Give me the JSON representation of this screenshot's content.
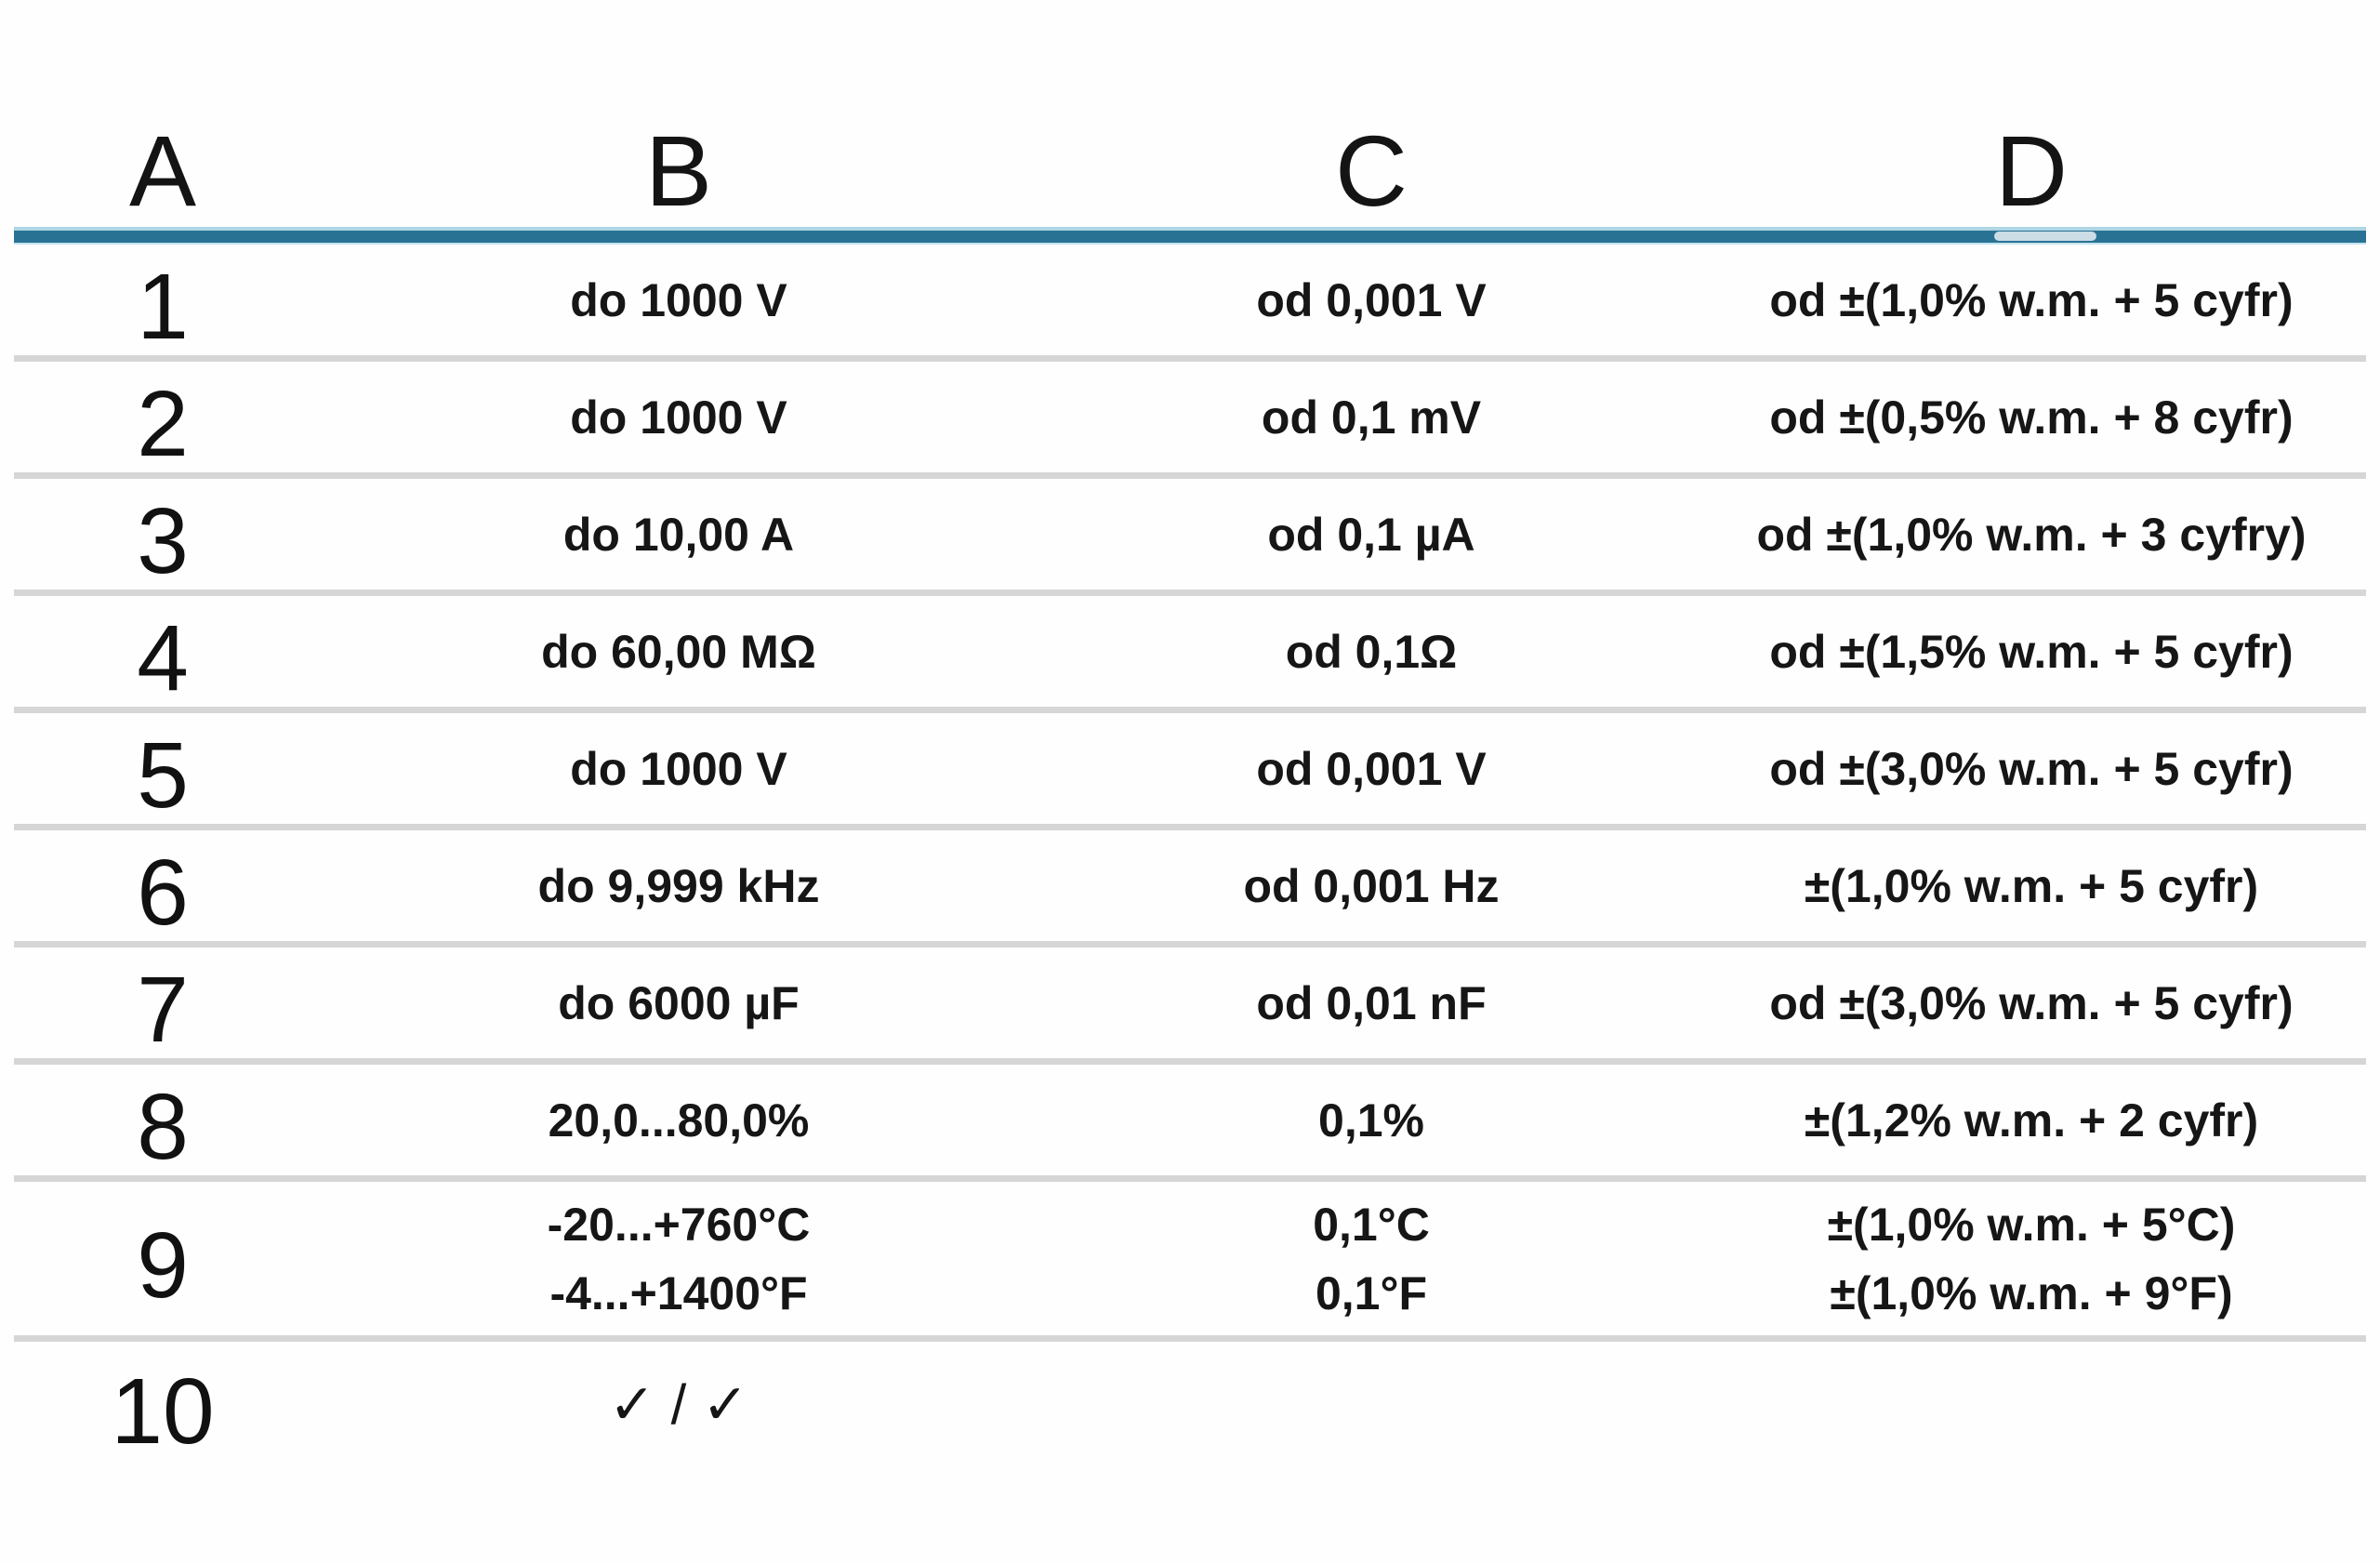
{
  "table": {
    "headers": [
      "A",
      "B",
      "C",
      "D"
    ],
    "rows": [
      {
        "a": "1",
        "b": "do 1000 V",
        "c": "od 0,001 V",
        "d": "od ±(1,0% w.m. + 5 cyfr)"
      },
      {
        "a": "2",
        "b": "do 1000 V",
        "c": "od 0,1 mV",
        "d": "od ±(0,5% w.m. + 8 cyfr)"
      },
      {
        "a": "3",
        "b": "do 10,00 A",
        "c": "od 0,1 µA",
        "d": "od ±(1,0% w.m. + 3 cyfry)"
      },
      {
        "a": "4",
        "b": "do 60,00 MΩ",
        "c": "od 0,1Ω",
        "d": "od ±(1,5% w.m. + 5 cyfr)"
      },
      {
        "a": "5",
        "b": "do 1000 V",
        "c": "od 0,001 V",
        "d": "od ±(3,0% w.m. + 5 cyfr)"
      },
      {
        "a": "6",
        "b": "do 9,999 kHz",
        "c": "od 0,001 Hz",
        "d": "±(1,0% w.m. + 5 cyfr)"
      },
      {
        "a": "7",
        "b": "do 6000 µF",
        "c": "od 0,01 nF",
        "d": "od ±(3,0% w.m. + 5 cyfr)"
      },
      {
        "a": "8",
        "b": "20,0...80,0%",
        "c": "0,1%",
        "d": "±(1,2% w.m. + 2 cyfr)"
      },
      {
        "a": "9",
        "b": [
          "-20...+760°C",
          "-4...+1400°F"
        ],
        "c": [
          "0,1°C",
          "0,1°F"
        ],
        "d": [
          "±(1,0% w.m. + 5°C)",
          "±(1,0% w.m. + 9°F)"
        ]
      },
      {
        "a": "10",
        "b": "✓ / ✓",
        "c": "",
        "d": ""
      }
    ]
  },
  "colors": {
    "header_divider_core": "#2a7294",
    "header_divider_light": "#aed6e4",
    "row_divider": "#d6d6d6",
    "text": "#161616"
  }
}
